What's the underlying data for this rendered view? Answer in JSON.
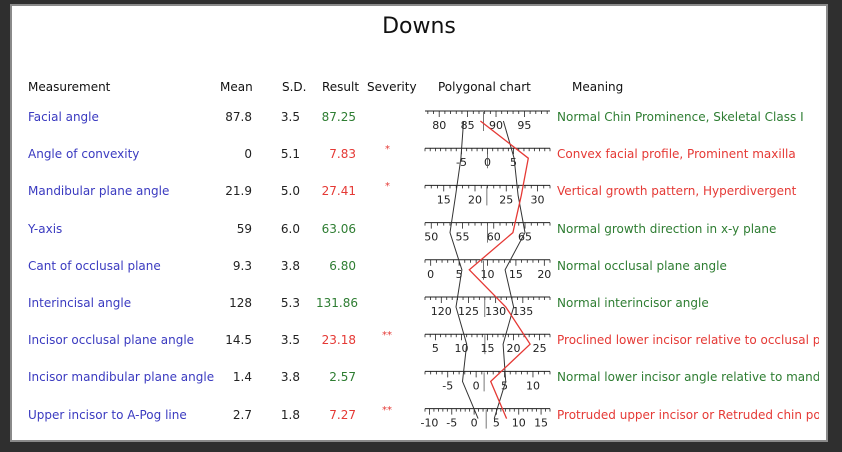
{
  "title": "Downs",
  "headers": {
    "measurement": "Measurement",
    "mean": "Mean",
    "sd": "S.D.",
    "result": "Result",
    "severity": "Severity",
    "chart": "Polygonal chart",
    "meaning": "Meaning"
  },
  "rows": [
    {
      "measurement": "Facial angle",
      "mean": "87.8",
      "sd": "3.5",
      "result": "87.25",
      "status": "normal",
      "severity": "",
      "meaning": "Normal Chin Prominence, Skeletal Class I",
      "ticks": [
        "80",
        "85",
        "90",
        "95"
      ],
      "scale_min": 77.5,
      "scale_max": 99.5,
      "mean_v": 87.8,
      "sd_v": 3.5,
      "value": 87.25
    },
    {
      "measurement": "Angle of convexity",
      "mean": "0",
      "sd": "5.1",
      "result": "7.83",
      "status": "abnormal",
      "severity": "*",
      "meaning": "Convex facial profile, Prominent maxilla",
      "ticks": [
        "-5",
        "0",
        "5"
      ],
      "scale_min": -12,
      "scale_max": 12,
      "mean_v": 0,
      "sd_v": 5.1,
      "value": 7.83
    },
    {
      "measurement": "Mandibular plane angle",
      "mean": "21.9",
      "sd": "5.0",
      "result": "27.41",
      "status": "abnormal",
      "severity": "*",
      "meaning": "Vertical growth pattern, Hyperdivergent",
      "ticks": [
        "15",
        "20",
        "25",
        "30"
      ],
      "scale_min": 12,
      "scale_max": 32,
      "mean_v": 21.9,
      "sd_v": 5.0,
      "value": 27.41
    },
    {
      "measurement": "Y-axis",
      "mean": "59",
      "sd": "6.0",
      "result": "63.06",
      "status": "normal",
      "severity": "",
      "meaning": "Normal growth direction in x-y plane",
      "ticks": [
        "50",
        "55",
        "60",
        "65"
      ],
      "scale_min": 49,
      "scale_max": 69,
      "mean_v": 59,
      "sd_v": 6.0,
      "value": 63.06
    },
    {
      "measurement": "Cant of occlusal plane",
      "mean": "9.3",
      "sd": "3.8",
      "result": "6.80",
      "status": "normal",
      "severity": "",
      "meaning": "Normal occlusal plane angle",
      "ticks": [
        "0",
        "5",
        "10",
        "15",
        "20"
      ],
      "scale_min": -1,
      "scale_max": 21,
      "mean_v": 9.3,
      "sd_v": 3.8,
      "value": 6.8
    },
    {
      "measurement": "Interincisal angle",
      "mean": "128",
      "sd": "5.3",
      "result": "131.86",
      "status": "normal",
      "severity": "",
      "meaning": "Normal interincisor angle",
      "ticks": [
        "120",
        "125",
        "130",
        "135"
      ],
      "scale_min": 117,
      "scale_max": 140,
      "mean_v": 128,
      "sd_v": 5.3,
      "value": 131.86
    },
    {
      "measurement": "Incisor occlusal plane angle",
      "mean": "14.5",
      "sd": "3.5",
      "result": "23.18",
      "status": "abnormal",
      "severity": "**",
      "meaning": "Proclined lower incisor relative to occlusal plane",
      "ticks": [
        "5",
        "10",
        "15",
        "20",
        "25"
      ],
      "scale_min": 3,
      "scale_max": 27,
      "mean_v": 14.5,
      "sd_v": 3.5,
      "value": 23.18
    },
    {
      "measurement": "Incisor mandibular plane angle",
      "mean": "1.4",
      "sd": "3.8",
      "result": "2.57",
      "status": "normal",
      "severity": "",
      "meaning": "Normal lower incisor angle relative to mandible le",
      "ticks": [
        "-5",
        "0",
        "5",
        "10"
      ],
      "scale_min": -9,
      "scale_max": 13,
      "mean_v": 1.4,
      "sd_v": 3.8,
      "value": 2.57
    },
    {
      "measurement": "Upper incisor to A-Pog line",
      "mean": "2.7",
      "sd": "1.8",
      "result": "7.27",
      "status": "abnormal",
      "severity": "**",
      "meaning": "Protruded upper incisor or Retruded chin point",
      "ticks": [
        "-10",
        "-5",
        "0",
        "5",
        "10",
        "15"
      ],
      "scale_min": -11,
      "scale_max": 17,
      "mean_v": 2.7,
      "sd_v": 1.8,
      "value": 7.27
    }
  ],
  "colors": {
    "measurement": "#3a3ac0",
    "normal": "#2e7d32",
    "abnormal": "#e53935",
    "polyline_value": "#e53935",
    "polyline_sd": "#333333"
  }
}
